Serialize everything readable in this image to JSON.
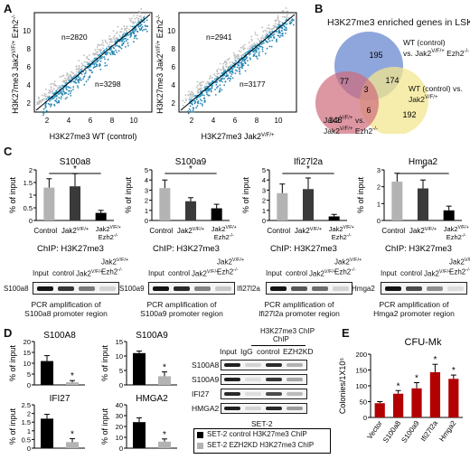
{
  "panels": {
    "A": {
      "letter": "A",
      "scatter_left": {
        "n_top": "n=2820",
        "n_bottom": "n=3298",
        "xlabel": "H3K27me3 WT (control)",
        "ylabel": "H3K27me3 Jak2V/F/+ Ezh2-/-",
        "ticks": [
          "2",
          "4",
          "6",
          "8",
          "10"
        ]
      },
      "scatter_right": {
        "n_top": "n=2941",
        "n_bottom": "n=3177",
        "xlabel": "H3K27me3 Jak2V/F/+",
        "ylabel": "H3K27me3 Jak2V/F/+ Ezh2-/-",
        "ticks": [
          "2",
          "4",
          "6",
          "8",
          "10"
        ]
      }
    },
    "B": {
      "letter": "B",
      "title": "H3K27me3 enriched genes in LSK",
      "counts": {
        "blue_only": "195",
        "red_only": "146",
        "yellow_only": "192",
        "blue_red": "77",
        "blue_yellow": "174",
        "red_yellow": "6",
        "center": "3"
      },
      "labels": {
        "blue": "WT (control) vs. Jak2V/F/+ Ezh2-/-",
        "yellow": "WT (control) vs. Jak2V/F/+",
        "red": "Jak2V/F/+ vs. Jak2V/F/+ Ezh2-/-"
      },
      "colors": {
        "blue": "#7b96d6",
        "red": "#cf6b7a",
        "yellow": "#f3e58f"
      }
    },
    "C": {
      "letter": "C",
      "ylabel": "% of input",
      "ticks": [
        "0",
        "1",
        "2",
        "3",
        "4"
      ],
      "categories": [
        "Control",
        "Jak2V/F/+",
        "Jak2V/F/+ Ezh2-/-"
      ],
      "chip": "ChIP: H3K27me3",
      "gel_header": [
        "Input",
        "control",
        "Jak2V/F/+",
        "Jak2V/F/+ Ezh2-/-"
      ],
      "charts": [
        {
          "title": "S100a8",
          "gene": "S100a8",
          "caption1": "PCR amplification of",
          "caption2": "S100a8 promoter region"
        },
        {
          "title": "S100a9",
          "gene": "S100a9",
          "caption1": "PCR amplification of",
          "caption2": "S100a9 promoter region"
        },
        {
          "title": "Ifi27l2a",
          "gene": "Ifi27l2a",
          "caption1": "PCR amplification of",
          "caption2": "Ifi27l2a promoter region"
        },
        {
          "title": "Hmga2",
          "gene": "Hmga2",
          "caption1": "PCR amplification of",
          "caption2": "Hmga2 promoter region"
        }
      ]
    },
    "D": {
      "letter": "D",
      "ylabel": "% of input",
      "charts": [
        {
          "title": "S100A8"
        },
        {
          "title": "S100A9"
        },
        {
          "title": "IFI27"
        },
        {
          "title": "HMGA2"
        }
      ],
      "gel_chip_header": "H3K27me3 ChIP",
      "gel_header": [
        "Input",
        "IgG",
        "control",
        "EZH2KD"
      ],
      "gel_rows": [
        "S100A8",
        "S100A9",
        "IFI27",
        "HMGA2"
      ],
      "gel_caption": "SET-2",
      "legend": [
        "SET-2 control H3K27me3 ChIP",
        "SET-2 EZH2KD H3K27me3 ChIP"
      ]
    },
    "E": {
      "letter": "E",
      "title": "CFU-Mk",
      "ylabel": "Colonies/1X10⁵",
      "ticks": [
        "0",
        "50",
        "100",
        "150",
        "200"
      ]
    }
  },
  "chart_data": [
    {
      "type": "bar",
      "title": "S100a8",
      "ylabel": "% of input",
      "categories": [
        "Control",
        "Jak2V/F/+",
        "Jak2V/F/+ Ezh2-/-"
      ],
      "values": [
        1.3,
        1.35,
        0.3
      ],
      "errors": [
        0.35,
        0.5,
        0.1
      ],
      "ylim": [
        0,
        2
      ],
      "ticks": [
        0,
        0.5,
        1,
        1.5,
        2
      ],
      "colors": [
        "#b3b3b3",
        "#3a3a3a",
        "#000000"
      ],
      "significance": "*"
    },
    {
      "type": "bar",
      "title": "S100a9",
      "ylabel": "% of input",
      "categories": [
        "Control",
        "Jak2V/F/+",
        "Jak2V/F/+ Ezh2-/-"
      ],
      "values": [
        3.2,
        1.9,
        1.2
      ],
      "errors": [
        0.8,
        0.35,
        0.4
      ],
      "ylim": [
        0,
        5
      ],
      "ticks": [
        0,
        1,
        2,
        3,
        4,
        5
      ],
      "colors": [
        "#b3b3b3",
        "#3a3a3a",
        "#000000"
      ],
      "significance": "*"
    },
    {
      "type": "bar",
      "title": "Ifi27l2a",
      "ylabel": "% of input",
      "categories": [
        "Control",
        "Jak2V/F/+",
        "Jak2V/F/+ Ezh2-/-"
      ],
      "values": [
        2.7,
        3.1,
        0.4
      ],
      "errors": [
        0.9,
        1.1,
        0.2
      ],
      "ylim": [
        0,
        5
      ],
      "ticks": [
        0,
        1,
        2,
        3,
        4,
        5
      ],
      "colors": [
        "#b3b3b3",
        "#3a3a3a",
        "#000000"
      ],
      "significance": "*"
    },
    {
      "type": "bar",
      "title": "Hmga2",
      "ylabel": "% of input",
      "categories": [
        "Control",
        "Jak2V/F/+",
        "Jak2V/F/+ Ezh2-/-"
      ],
      "values": [
        2.3,
        1.9,
        0.6
      ],
      "errors": [
        0.5,
        0.5,
        0.25
      ],
      "ylim": [
        0,
        3
      ],
      "ticks": [
        0,
        1,
        2,
        3
      ],
      "colors": [
        "#b3b3b3",
        "#3a3a3a",
        "#000000"
      ],
      "significance": "*"
    },
    {
      "type": "bar",
      "title": "S100A8",
      "ylabel": "% of input",
      "categories": [
        "control",
        "EZH2KD"
      ],
      "values": [
        11,
        1.2
      ],
      "errors": [
        2.5,
        0.8
      ],
      "ylim": [
        0,
        20
      ],
      "ticks": [
        0,
        5,
        10,
        15,
        20
      ],
      "colors": [
        "#000000",
        "#b3b3b3"
      ],
      "significance": "*"
    },
    {
      "type": "bar",
      "title": "S100A9",
      "ylabel": "% of input",
      "categories": [
        "control",
        "EZH2KD"
      ],
      "values": [
        11,
        3
      ],
      "errors": [
        0.7,
        1.5
      ],
      "ylim": [
        0,
        15
      ],
      "ticks": [
        0,
        5,
        10,
        15
      ],
      "colors": [
        "#000000",
        "#b3b3b3"
      ],
      "significance": "*"
    },
    {
      "type": "bar",
      "title": "IFI27",
      "ylabel": "% of input",
      "categories": [
        "control",
        "EZH2KD"
      ],
      "values": [
        1.7,
        0.35
      ],
      "errors": [
        0.25,
        0.2
      ],
      "ylim": [
        0,
        2.5
      ],
      "ticks": [
        0,
        0.5,
        1,
        1.5,
        2,
        2.5
      ],
      "colors": [
        "#000000",
        "#b3b3b3"
      ],
      "significance": "*"
    },
    {
      "type": "bar",
      "title": "HMGA2",
      "ylabel": "% of input",
      "categories": [
        "control",
        "EZH2KD"
      ],
      "values": [
        24,
        6
      ],
      "errors": [
        4,
        2.5
      ],
      "ylim": [
        0,
        40
      ],
      "ticks": [
        0,
        10,
        20,
        30,
        40
      ],
      "colors": [
        "#000000",
        "#b3b3b3"
      ],
      "significance": "*"
    },
    {
      "type": "bar",
      "title": "CFU-Mk",
      "ylabel": "Colonies/1X10⁵",
      "categories": [
        "Vector",
        "S100a8",
        "S100a9",
        "Ifi27l2a",
        "Hmga2"
      ],
      "values": [
        45,
        75,
        92,
        143,
        122
      ],
      "errors": [
        5,
        10,
        18,
        25,
        12
      ],
      "ylim": [
        0,
        200
      ],
      "ticks": [
        0,
        50,
        100,
        150,
        200
      ],
      "colors": [
        "#b30000",
        "#b30000",
        "#b30000",
        "#b30000",
        "#b30000"
      ],
      "significance": "*"
    }
  ]
}
